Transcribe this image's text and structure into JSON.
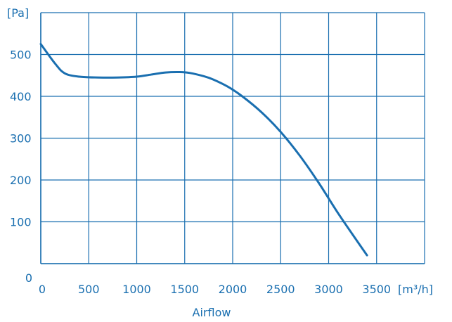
{
  "chart_data": {
    "type": "line",
    "title": "",
    "xlabel": "Airflow",
    "ylabel": "",
    "y_unit": "[Pa]",
    "x_unit": "[m³/h]",
    "xlim": [
      0,
      4000
    ],
    "ylim": [
      0,
      600
    ],
    "x_ticks": [
      0,
      500,
      1000,
      1500,
      2000,
      2500,
      3000,
      3500
    ],
    "y_ticks": [
      0,
      100,
      200,
      300,
      400,
      500
    ],
    "grid": true,
    "series": [
      {
        "x": [
          0,
          150,
          250,
          400,
          600,
          800,
          1000,
          1150,
          1300,
          1450,
          1550,
          1700,
          1800,
          1950,
          2100,
          2300,
          2500,
          2700,
          2900,
          3100,
          3300,
          3400
        ],
        "y": [
          525,
          478,
          455,
          447,
          445,
          445,
          447,
          452,
          457,
          458,
          456,
          448,
          440,
          423,
          400,
          362,
          315,
          258,
          192,
          120,
          53,
          20
        ]
      }
    ]
  },
  "colors": {
    "grid": "#1a6fb0",
    "line": "#1a6fb0",
    "text": "#1a6fb0"
  }
}
